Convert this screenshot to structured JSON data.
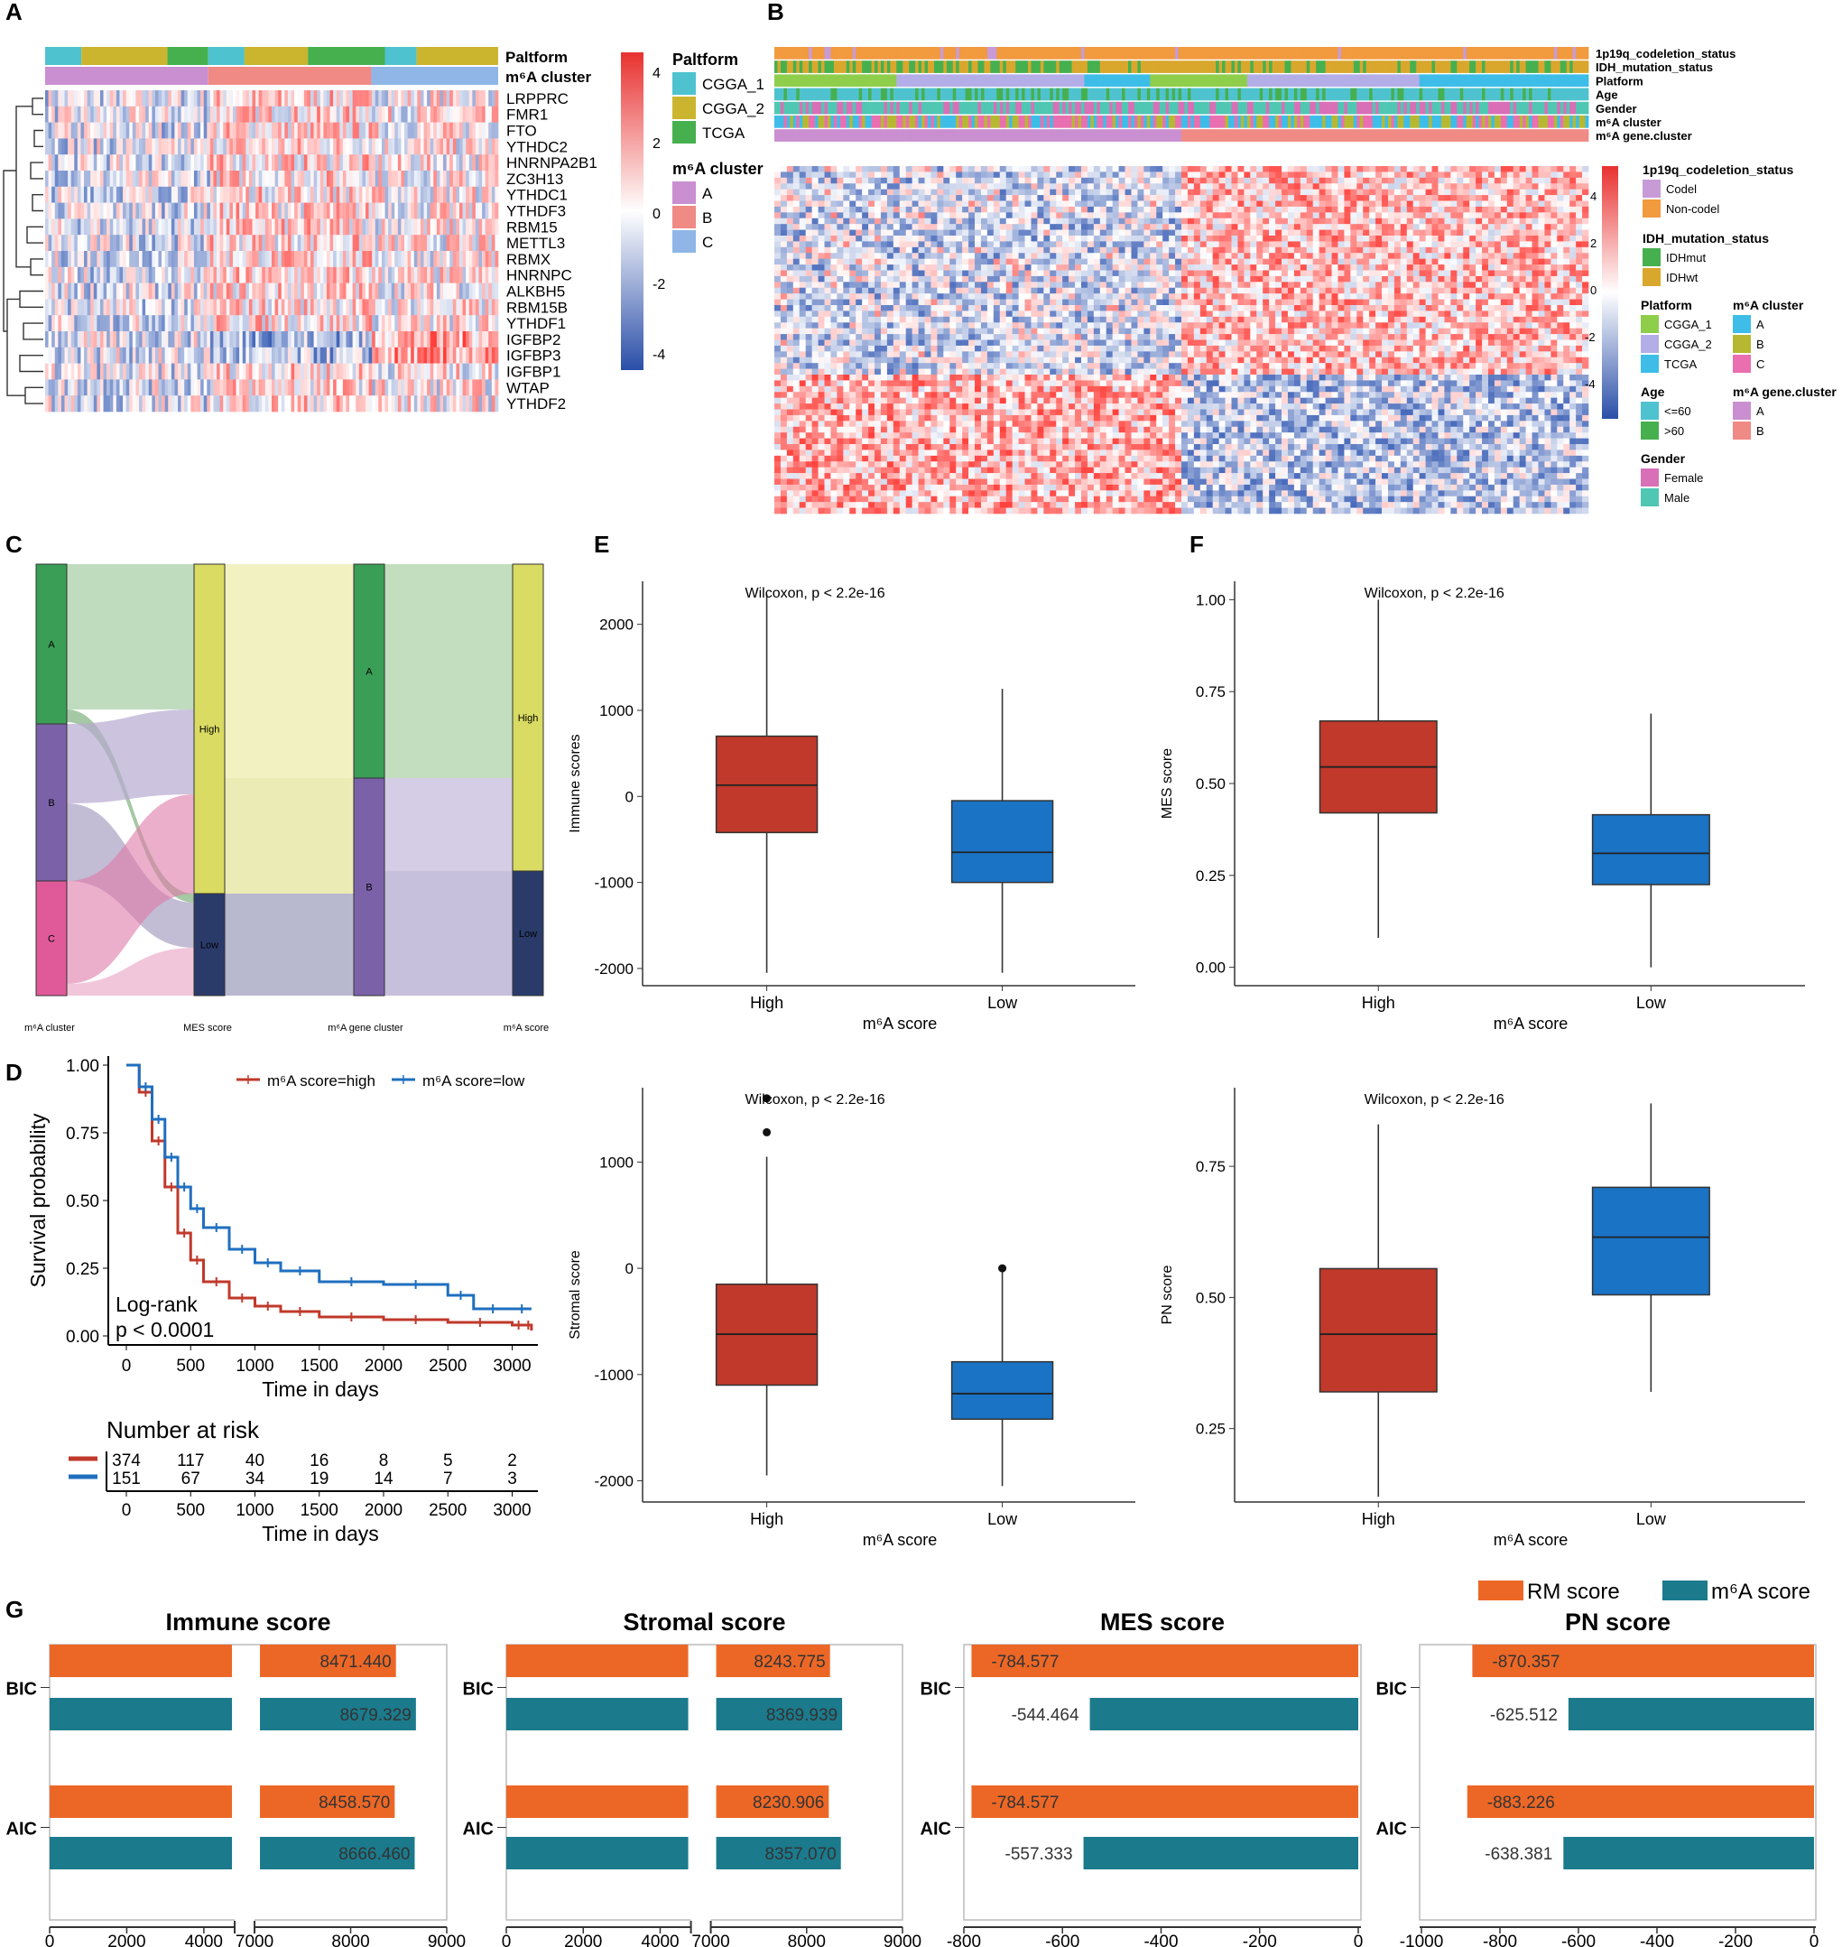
{
  "panels": {
    "A": "A",
    "B": "B",
    "C": "C",
    "D": "D",
    "E": "E",
    "F": "F",
    "G": "G"
  },
  "heatmapA": {
    "annot_labels": [
      "Paltform",
      "m⁶A cluster"
    ],
    "genes": [
      "LRPPRC",
      "FMR1",
      "FTO",
      "YTHDC2",
      "HNRNPA2B1",
      "ZC3H13",
      "YTHDC1",
      "YTHDF3",
      "RBM15",
      "METTL3",
      "RBMX",
      "HNRNPC",
      "ALKBH5",
      "RBM15B",
      "YTHDF1",
      "IGFBP2",
      "IGFBP3",
      "IGFBP1",
      "WTAP",
      "YTHDF2"
    ],
    "colorbar_ticks": [
      "4",
      "2",
      "0",
      "-2",
      "-4"
    ],
    "legend_platform_title": "Paltform",
    "legend_platform": [
      {
        "label": "CGGA_1",
        "color": "#4ec3cf"
      },
      {
        "label": "CGGA_2",
        "color": "#cbb52e"
      },
      {
        "label": "TCGA",
        "color": "#46b04f"
      }
    ],
    "legend_cluster_title": "m⁶A cluster",
    "legend_cluster": [
      {
        "label": "A",
        "color": "#c98fd0"
      },
      {
        "label": "B",
        "color": "#f08a85"
      },
      {
        "label": "C",
        "color": "#8fb6e6"
      }
    ]
  },
  "heatmapB": {
    "annot_labels": [
      "1p19q_codeletion_status",
      "IDH_mutation_status",
      "Platform",
      "Age",
      "Gender",
      "m⁶A cluster",
      "m⁶A gene.cluster"
    ],
    "colorbar_ticks": [
      "4",
      "2",
      "0",
      "-2",
      "-4"
    ],
    "legends": {
      "codel": {
        "title": "1p19q_codeletion_status",
        "items": [
          {
            "label": "Codel",
            "color": "#c79bd6"
          },
          {
            "label": "Non-codel",
            "color": "#f19a3e"
          }
        ]
      },
      "idh": {
        "title": "IDH_mutation_status",
        "items": [
          {
            "label": "IDHmut",
            "color": "#46b04f"
          },
          {
            "label": "IDHwt",
            "color": "#d9a72c"
          }
        ]
      },
      "platform": {
        "title": "Platform",
        "items": [
          {
            "label": "CGGA_1",
            "color": "#8fce4b"
          },
          {
            "label": "CGGA_2",
            "color": "#b3aee8"
          },
          {
            "label": "TCGA",
            "color": "#3dbde8"
          }
        ]
      },
      "age": {
        "title": "Age",
        "items": [
          {
            "label": "<=60",
            "color": "#4ec3cf"
          },
          {
            "label": ">60",
            "color": "#46b04f"
          }
        ]
      },
      "gender": {
        "title": "Gender",
        "items": [
          {
            "label": "Female",
            "color": "#d96fb7"
          },
          {
            "label": "Male",
            "color": "#4fc7b3"
          }
        ]
      },
      "m6a_cluster": {
        "title": "m⁶A cluster",
        "items": [
          {
            "label": "A",
            "color": "#3dbde8"
          },
          {
            "label": "B",
            "color": "#b7b832"
          },
          {
            "label": "C",
            "color": "#ea6fb0"
          }
        ]
      },
      "m6a_gene_cluster": {
        "title": "m⁶A gene.cluster",
        "items": [
          {
            "label": "A",
            "color": "#c98fd0"
          },
          {
            "label": "B",
            "color": "#f08a85"
          }
        ]
      }
    }
  },
  "sankey": {
    "axis_labels": [
      "m⁶A cluster",
      "MES score",
      "m⁶A gene cluster",
      "m⁶A score"
    ],
    "col1": [
      "A",
      "B",
      "C"
    ],
    "col2": [
      "High",
      "Low"
    ],
    "col3": [
      "A",
      "B"
    ],
    "col4": [
      "High",
      "Low"
    ]
  },
  "chart_data": [
    {
      "id": "D",
      "type": "line",
      "title": "",
      "xlabel": "Time in days",
      "ylabel": "Survival probability",
      "xlim": [
        0,
        3200
      ],
      "ylim": [
        0,
        1
      ],
      "xticks": [
        "0",
        "500",
        "1000",
        "1500",
        "2000",
        "2500",
        "3000"
      ],
      "yticks": [
        "0.00",
        "0.25",
        "0.50",
        "0.75",
        "1.00"
      ],
      "legend": [
        "m⁶A score=high",
        "m⁶A score=low"
      ],
      "annotation": [
        "Log-rank",
        "p < 0.0001"
      ],
      "series": [
        {
          "name": "m⁶A score=high",
          "color": "#c0392b",
          "x": [
            0,
            100,
            200,
            300,
            400,
            500,
            600,
            800,
            1000,
            1200,
            1500,
            2000,
            2500,
            3000,
            3100,
            3150
          ],
          "values": [
            1.0,
            0.9,
            0.72,
            0.55,
            0.38,
            0.28,
            0.2,
            0.14,
            0.11,
            0.09,
            0.07,
            0.06,
            0.05,
            0.04,
            0.04,
            0.02
          ]
        },
        {
          "name": "m⁶A score=low",
          "color": "#1f6fbf",
          "x": [
            0,
            100,
            200,
            300,
            400,
            500,
            600,
            800,
            1000,
            1200,
            1500,
            2000,
            2500,
            2700,
            3000,
            3150
          ],
          "values": [
            1.0,
            0.92,
            0.8,
            0.66,
            0.55,
            0.47,
            0.4,
            0.32,
            0.27,
            0.24,
            0.2,
            0.19,
            0.15,
            0.1,
            0.1,
            0.1
          ]
        }
      ],
      "risk_table": {
        "title": "Number at risk",
        "xlabel": "Time in days",
        "rows": [
          {
            "color": "#c0392b",
            "values": [
              "374",
              "117",
              "40",
              "16",
              "8",
              "5",
              "2"
            ]
          },
          {
            "color": "#1f6fbf",
            "values": [
              "151",
              "67",
              "34",
              "19",
              "14",
              "7",
              "3"
            ]
          }
        ]
      }
    },
    {
      "id": "E1",
      "type": "box",
      "title": "Wilcoxon, p < 2.2e-16",
      "xlabel": "m⁶A score",
      "ylabel": "Immune scores",
      "categories": [
        "High",
        "Low"
      ],
      "ylim": [
        -2200,
        2500
      ],
      "yticks": [
        -2000,
        -1000,
        0,
        1000,
        2000
      ],
      "boxes": [
        {
          "cat": "High",
          "color": "#c0392b",
          "min": -2050,
          "q1": -420,
          "median": 130,
          "q3": 700,
          "max": 2350,
          "outliers": []
        },
        {
          "cat": "Low",
          "color": "#1a73c4",
          "min": -2050,
          "q1": -1000,
          "median": -650,
          "q3": -50,
          "max": 1250,
          "outliers": []
        }
      ]
    },
    {
      "id": "E2",
      "type": "box",
      "title": "Wilcoxon, p < 2.2e-16",
      "xlabel": "m⁶A score",
      "ylabel": "Stromal score",
      "categories": [
        "High",
        "Low"
      ],
      "ylim": [
        -2200,
        1700
      ],
      "yticks": [
        -2000,
        -1000,
        0,
        1000
      ],
      "boxes": [
        {
          "cat": "High",
          "color": "#c0392b",
          "min": -1950,
          "q1": -1100,
          "median": -620,
          "q3": -150,
          "max": 1050,
          "outliers": [
            1280,
            1600
          ]
        },
        {
          "cat": "Low",
          "color": "#1a73c4",
          "min": -2050,
          "q1": -1420,
          "median": -1180,
          "q3": -880,
          "max": -30,
          "outliers": [
            0
          ]
        }
      ]
    },
    {
      "id": "F1",
      "type": "box",
      "title": "Wilcoxon, p < 2.2e-16",
      "xlabel": "m⁶A score",
      "ylabel": "MES score",
      "categories": [
        "High",
        "Low"
      ],
      "ylim": [
        -0.05,
        1.05
      ],
      "yticks": [
        0.0,
        0.25,
        0.5,
        0.75,
        1.0
      ],
      "ytick_labels": [
        "0.00",
        "0.25",
        "0.50",
        "0.75",
        "1.00"
      ],
      "boxes": [
        {
          "cat": "High",
          "color": "#c0392b",
          "min": 0.08,
          "q1": 0.42,
          "median": 0.545,
          "q3": 0.67,
          "max": 1.0,
          "outliers": []
        },
        {
          "cat": "Low",
          "color": "#1a73c4",
          "min": 0.0,
          "q1": 0.225,
          "median": 0.31,
          "q3": 0.415,
          "max": 0.69,
          "outliers": []
        }
      ]
    },
    {
      "id": "F2",
      "type": "box",
      "title": "Wilcoxon, p < 2.2e-16",
      "xlabel": "m⁶A score",
      "ylabel": "PN score",
      "categories": [
        "High",
        "Low"
      ],
      "ylim": [
        0.11,
        0.9
      ],
      "yticks": [
        0.25,
        0.5,
        0.75
      ],
      "ytick_labels": [
        "0.25",
        "0.50",
        "0.75"
      ],
      "boxes": [
        {
          "cat": "High",
          "color": "#c0392b",
          "min": 0.12,
          "q1": 0.32,
          "median": 0.43,
          "q3": 0.555,
          "max": 0.83,
          "outliers": []
        },
        {
          "cat": "Low",
          "color": "#1a73c4",
          "min": 0.32,
          "q1": 0.505,
          "median": 0.615,
          "q3": 0.71,
          "max": 0.87,
          "outliers": []
        }
      ]
    },
    {
      "id": "G",
      "type": "bar",
      "orientation": "horizontal",
      "legend": [
        {
          "name": "RM score",
          "color": "#ec6726"
        },
        {
          "name": "m⁶A score",
          "color": "#1b7a8c"
        }
      ],
      "categories": [
        "BIC",
        "AIC"
      ],
      "charts": [
        {
          "title": "Immune score",
          "broken_axis": true,
          "xticks": [
            "0",
            "2000",
            "4000",
            "7000",
            "8000",
            "9000"
          ],
          "series": [
            {
              "name": "RM score",
              "values": [
                8471.44,
                8458.57
              ],
              "labels": [
                "8471.440",
                "8458.570"
              ]
            },
            {
              "name": "m⁶A score",
              "values": [
                8679.329,
                8666.46
              ],
              "labels": [
                "8679.329",
                "8666.460"
              ]
            }
          ]
        },
        {
          "title": "Stromal score",
          "broken_axis": true,
          "xticks": [
            "0",
            "2000",
            "4000",
            "7000",
            "8000",
            "9000"
          ],
          "series": [
            {
              "name": "RM score",
              "values": [
                8243.775,
                8230.906
              ],
              "labels": [
                "8243.775",
                "8230.906"
              ]
            },
            {
              "name": "m⁶A score",
              "values": [
                8369.939,
                8357.07
              ],
              "labels": [
                "8369.939",
                "8357.070"
              ]
            }
          ]
        },
        {
          "title": "MES score",
          "broken_axis": false,
          "xlim": [
            -800,
            0
          ],
          "xticks": [
            "-800",
            "-600",
            "-400",
            "-200",
            "0"
          ],
          "series": [
            {
              "name": "RM score",
              "values": [
                -784.577,
                -784.577
              ],
              "labels": [
                "-784.577",
                "-784.577"
              ]
            },
            {
              "name": "m⁶A score",
              "values": [
                -544.464,
                -557.333
              ],
              "labels": [
                "-544.464",
                "-557.333"
              ]
            }
          ]
        },
        {
          "title": "PN score",
          "broken_axis": false,
          "xlim": [
            -1000,
            0
          ],
          "xticks": [
            "-1000",
            "-800",
            "-600",
            "-400",
            "-200",
            "0"
          ],
          "series": [
            {
              "name": "RM score",
              "values": [
                -870.357,
                -883.226
              ],
              "labels": [
                "-870.357",
                "-883.226"
              ]
            },
            {
              "name": "m⁶A score",
              "values": [
                -625.512,
                -638.381
              ],
              "labels": [
                "-625.512",
                "-638.381"
              ]
            }
          ]
        }
      ]
    }
  ]
}
